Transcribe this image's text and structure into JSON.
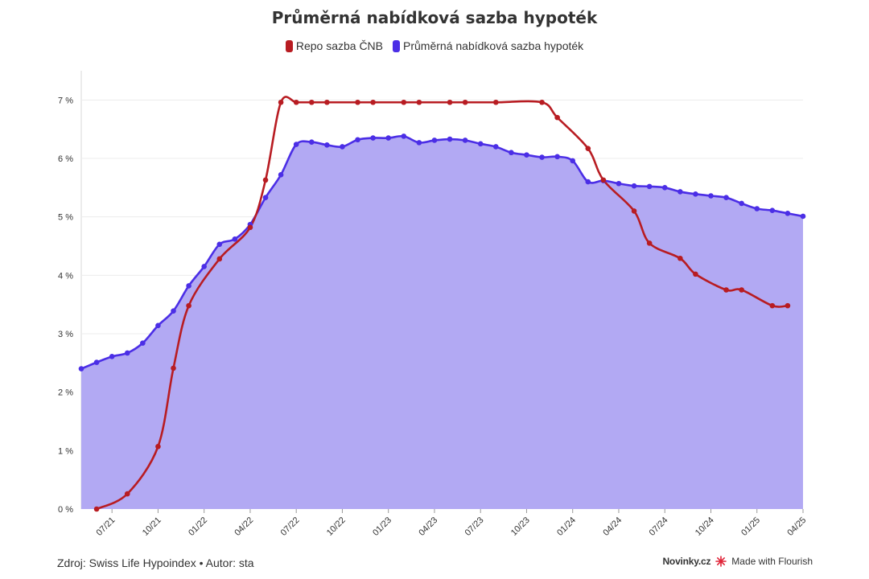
{
  "title": "Průměrná nabídková sazba hypoték",
  "legend": [
    {
      "label": "Repo sazba ČNB",
      "color": "#b81c22"
    },
    {
      "label": "Průměrná nabídková sazba hypoték",
      "color": "#4b2ee6"
    }
  ],
  "footer": {
    "source": "Zdroj: Swiss Life Hypoindex • Autor: sta",
    "brand": "Novinky.cz",
    "made_with": "Made with Flourish"
  },
  "chart_data": {
    "type": "line",
    "y_range": [
      0,
      7.5
    ],
    "x_range": [
      "2021-05",
      "2025-04"
    ],
    "y_ticks": [
      {
        "v": 0,
        "label": "0 %"
      },
      {
        "v": 1,
        "label": "1 %"
      },
      {
        "v": 2,
        "label": "2 %"
      },
      {
        "v": 3,
        "label": "3 %"
      },
      {
        "v": 4,
        "label": "4 %"
      },
      {
        "v": 5,
        "label": "5 %"
      },
      {
        "v": 6,
        "label": "6 %"
      },
      {
        "v": 7,
        "label": "7 %"
      }
    ],
    "x_ticks": [
      "07/21",
      "10/21",
      "01/22",
      "04/22",
      "07/22",
      "10/22",
      "01/23",
      "04/23",
      "07/23",
      "10/23",
      "01/24",
      "04/24",
      "07/24",
      "10/24",
      "01/25",
      "04/25"
    ],
    "grid": true,
    "series": [
      {
        "name": "Průměrná nabídková sazba hypoték",
        "color": "#4b2ee6",
        "fill": "#b2a9f3",
        "area": true,
        "points": [
          [
            "2021-05",
            2.4
          ],
          [
            "2021-06",
            2.51
          ],
          [
            "2021-07",
            2.61
          ],
          [
            "2021-08",
            2.67
          ],
          [
            "2021-09",
            2.84
          ],
          [
            "2021-10",
            3.14
          ],
          [
            "2021-11",
            3.39
          ],
          [
            "2021-12",
            3.82
          ],
          [
            "2022-01",
            4.15
          ],
          [
            "2022-02",
            4.53
          ],
          [
            "2022-03",
            4.62
          ],
          [
            "2022-04",
            4.87
          ],
          [
            "2022-05",
            5.33
          ],
          [
            "2022-06",
            5.72
          ],
          [
            "2022-07",
            6.24
          ],
          [
            "2022-08",
            6.28
          ],
          [
            "2022-09",
            6.23
          ],
          [
            "2022-10",
            6.2
          ],
          [
            "2022-11",
            6.32
          ],
          [
            "2022-12",
            6.35
          ],
          [
            "2023-01",
            6.35
          ],
          [
            "2023-02",
            6.38
          ],
          [
            "2023-03",
            6.27
          ],
          [
            "2023-04",
            6.31
          ],
          [
            "2023-05",
            6.33
          ],
          [
            "2023-06",
            6.31
          ],
          [
            "2023-07",
            6.25
          ],
          [
            "2023-08",
            6.2
          ],
          [
            "2023-09",
            6.1
          ],
          [
            "2023-10",
            6.06
          ],
          [
            "2023-11",
            6.02
          ],
          [
            "2023-12",
            6.03
          ],
          [
            "2024-01",
            5.96
          ],
          [
            "2024-02",
            5.6
          ],
          [
            "2024-03",
            5.62
          ],
          [
            "2024-04",
            5.57
          ],
          [
            "2024-05",
            5.53
          ],
          [
            "2024-06",
            5.52
          ],
          [
            "2024-07",
            5.5
          ],
          [
            "2024-08",
            5.43
          ],
          [
            "2024-09",
            5.39
          ],
          [
            "2024-10",
            5.36
          ],
          [
            "2024-11",
            5.33
          ],
          [
            "2024-12",
            5.23
          ],
          [
            "2025-01",
            5.14
          ],
          [
            "2025-02",
            5.11
          ],
          [
            "2025-03",
            5.06
          ],
          [
            "2025-04",
            5.01
          ]
        ]
      },
      {
        "name": "Repo sazba ČNB",
        "color": "#b81c22",
        "area": false,
        "points": [
          [
            "2021-06",
            0.0
          ],
          [
            "2021-08",
            0.26
          ],
          [
            "2021-10",
            1.07
          ],
          [
            "2021-11",
            2.41
          ],
          [
            "2021-12",
            3.48
          ],
          [
            "2022-02",
            4.28
          ],
          [
            "2022-04",
            4.82
          ],
          [
            "2022-05",
            5.63
          ],
          [
            "2022-06",
            6.96
          ],
          [
            "2022-07",
            6.96
          ],
          [
            "2022-08",
            6.96
          ],
          [
            "2022-09",
            6.96
          ],
          [
            "2022-11",
            6.96
          ],
          [
            "2022-12",
            6.96
          ],
          [
            "2023-02",
            6.96
          ],
          [
            "2023-03",
            6.96
          ],
          [
            "2023-05",
            6.96
          ],
          [
            "2023-06",
            6.96
          ],
          [
            "2023-08",
            6.96
          ],
          [
            "2023-11",
            6.96
          ],
          [
            "2023-12",
            6.7
          ],
          [
            "2024-02",
            6.17
          ],
          [
            "2024-03",
            5.63
          ],
          [
            "2024-05",
            5.1
          ],
          [
            "2024-06",
            4.55
          ],
          [
            "2024-08",
            4.29
          ],
          [
            "2024-09",
            4.02
          ],
          [
            "2024-11",
            3.75
          ],
          [
            "2024-12",
            3.75
          ],
          [
            "2025-02",
            3.48
          ],
          [
            "2025-03",
            3.48
          ]
        ]
      }
    ]
  }
}
